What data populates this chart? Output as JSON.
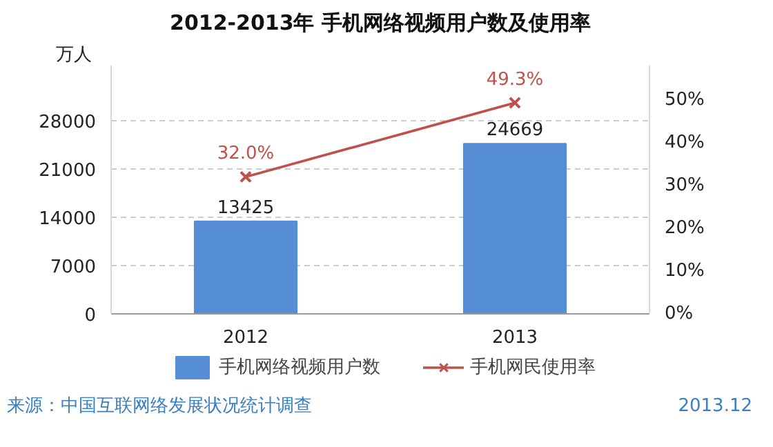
{
  "chart_data": {
    "type": "bar",
    "title": "2012-2013年 手机网络视频用户数及使用率",
    "ylabel": "万人",
    "categories": [
      "2012",
      "2013"
    ],
    "series": [
      {
        "name": "手机网络视频用户数",
        "color": "#558ed5",
        "values": [
          13425,
          24669
        ],
        "value_labels": [
          "13425",
          "24669"
        ]
      },
      {
        "name": "手机网民使用率",
        "type": "line",
        "axis": "y2",
        "color": "#c0504d",
        "marker": "cross",
        "values": [
          32.0,
          49.3
        ],
        "value_labels": [
          "32.0%",
          "49.3%"
        ]
      }
    ],
    "ylim": [
      0,
      36000
    ],
    "yticks": [
      0,
      7000,
      14000,
      21000,
      28000
    ],
    "y2lim": [
      0,
      58
    ],
    "y2ticks": [
      {
        "value": 0,
        "label": "0%"
      },
      {
        "value": 10,
        "label": "10%"
      },
      {
        "value": 20,
        "label": "20%"
      },
      {
        "value": 30,
        "label": "30%"
      },
      {
        "value": 40,
        "label": "40%"
      },
      {
        "value": 50,
        "label": "50%"
      }
    ],
    "grid": "y",
    "legend": "bottom",
    "annotations": [
      "来源：中国互联网络发展状况统计调查",
      "2013.12"
    ]
  }
}
